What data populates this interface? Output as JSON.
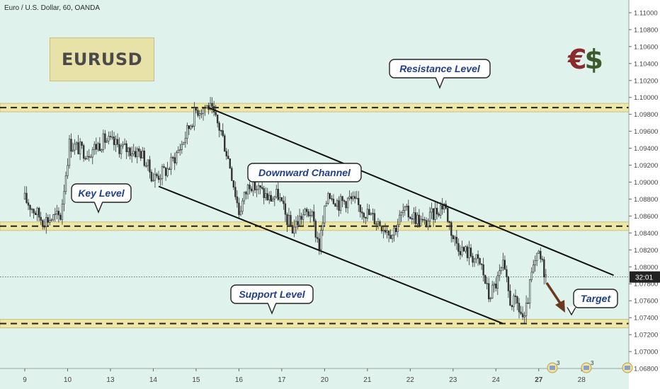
{
  "symbol": "Euro / U.S. Dollar, 60, OANDA",
  "title_box": "EURUSD",
  "brand": {
    "eur": "€",
    "usd": "$",
    "eur_color": "#8b2a2a",
    "usd_color": "#3d5a2a"
  },
  "colors": {
    "background": "#dff3ec",
    "band": "#eee8a8",
    "band_border": "#c9c07d",
    "candle": "#333333",
    "arrow": "#6b3a1e",
    "callout_text": "#1f3f8a"
  },
  "chart_data": {
    "type": "candlestick",
    "ylim": [
      1.068,
      1.111
    ],
    "grid": false,
    "current_price_line": 1.0788,
    "current_price_label": "32:01",
    "y_ticks": [
      "1.11000",
      "1.10800",
      "1.10600",
      "1.10400",
      "1.10200",
      "1.10000",
      "1.09800",
      "1.09600",
      "1.09400",
      "1.09200",
      "1.09000",
      "1.08800",
      "1.08600",
      "1.08400",
      "1.08200",
      "1.08000",
      "1.07800",
      "1.07600",
      "1.07400",
      "1.07200",
      "1.07000",
      "1.06800"
    ],
    "x_ticks": [
      "9",
      "10",
      "13",
      "14",
      "15",
      "16",
      "17",
      "20",
      "21",
      "22",
      "23",
      "24",
      "27",
      "28"
    ],
    "x_tick_index": [
      0,
      24,
      48,
      72,
      96,
      120,
      144,
      168,
      192,
      216,
      240,
      264,
      288,
      312
    ],
    "levels": [
      {
        "name": "resistance",
        "price": 1.0988
      },
      {
        "name": "key",
        "price": 1.0848
      },
      {
        "name": "support",
        "price": 1.0733
      }
    ],
    "channel": [
      {
        "from": [
          103,
          1.0988
        ],
        "to": [
          330,
          1.079
        ]
      },
      {
        "from": [
          75,
          1.0895
        ],
        "to": [
          268,
          1.0733
        ]
      }
    ],
    "path": [
      [
        0,
        1.088
      ],
      [
        10,
        1.0855
      ],
      [
        20,
        1.086
      ],
      [
        25,
        1.0945
      ],
      [
        35,
        1.0935
      ],
      [
        45,
        1.095
      ],
      [
        55,
        1.094
      ],
      [
        65,
        1.0935
      ],
      [
        72,
        1.0905
      ],
      [
        80,
        1.0915
      ],
      [
        88,
        1.0945
      ],
      [
        96,
        1.0985
      ],
      [
        103,
        1.099
      ],
      [
        110,
        1.096
      ],
      [
        115,
        1.092
      ],
      [
        120,
        1.0865
      ],
      [
        126,
        1.09
      ],
      [
        132,
        1.089
      ],
      [
        137,
        1.088
      ],
      [
        142,
        1.0885
      ],
      [
        146,
        1.086
      ],
      [
        150,
        1.0845
      ],
      [
        155,
        1.086
      ],
      [
        160,
        1.0865
      ],
      [
        165,
        1.0825
      ],
      [
        170,
        1.089
      ],
      [
        176,
        1.0875
      ],
      [
        182,
        1.088
      ],
      [
        188,
        1.087
      ],
      [
        194,
        1.086
      ],
      [
        200,
        1.085
      ],
      [
        206,
        1.084
      ],
      [
        212,
        1.0865
      ],
      [
        218,
        1.086
      ],
      [
        224,
        1.085
      ],
      [
        230,
        1.0865
      ],
      [
        235,
        1.0875
      ],
      [
        240,
        1.0835
      ],
      [
        245,
        1.082
      ],
      [
        250,
        1.0815
      ],
      [
        256,
        1.08
      ],
      [
        260,
        1.0765
      ],
      [
        264,
        1.078
      ],
      [
        268,
        1.08
      ],
      [
        272,
        1.076
      ],
      [
        276,
        1.0755
      ],
      [
        280,
        1.0735
      ],
      [
        284,
        1.079
      ],
      [
        288,
        1.0815
      ],
      [
        292,
        1.079
      ]
    ]
  },
  "callouts": {
    "resistance": "Resistance Level",
    "downward_channel": "Downward Channel",
    "key": "Key Level",
    "support": "Support Level",
    "target": "Target"
  },
  "calendar_markers": [
    "3",
    "3"
  ]
}
